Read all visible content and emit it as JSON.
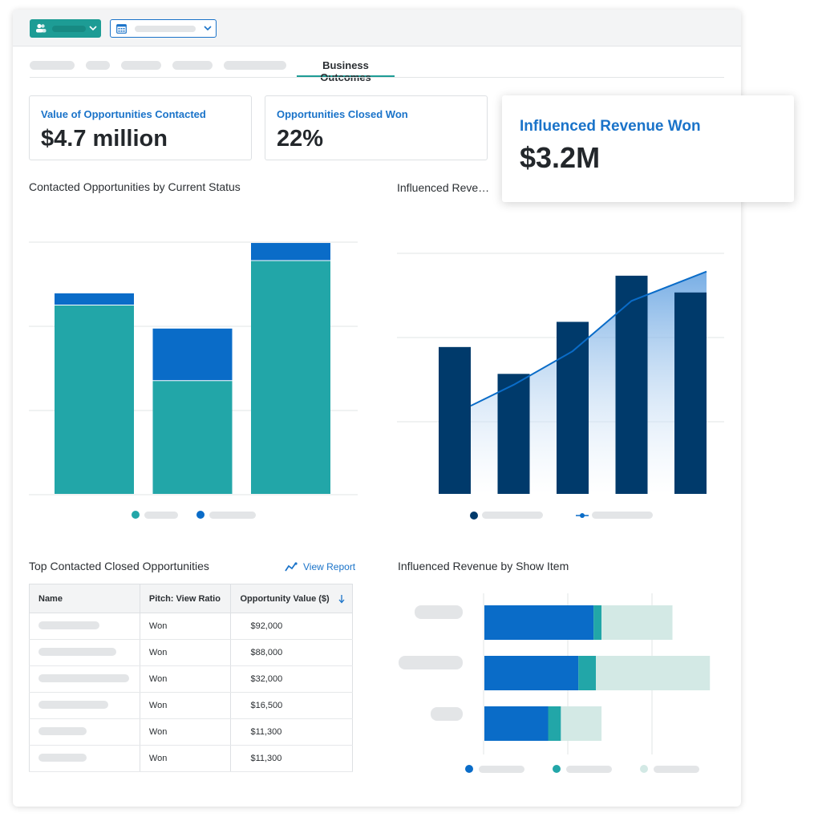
{
  "tabs": {
    "active_label": "Business Outcomes"
  },
  "kpis": [
    {
      "label": "Value of Opportunities Contacted",
      "value": "$4.7 million"
    },
    {
      "label": "Opportunities Closed Won",
      "value": "22%"
    }
  ],
  "highlight_kpi": {
    "label": "Influenced Revenue Won",
    "value": "$3.2M"
  },
  "status_chart": {
    "title": "Contacted Opportunities by Current Status"
  },
  "revenue_chart": {
    "title": "Influenced Reve…"
  },
  "top_table": {
    "title": "Top Contacted Closed Opportunities",
    "view_report": "View Report",
    "columns": [
      "Name",
      "Pitch: View Ratio",
      "Opportunity Value ($)"
    ],
    "rows": [
      {
        "ratio": "Won",
        "value": "$92,000"
      },
      {
        "ratio": "Won",
        "value": "$88,000"
      },
      {
        "ratio": "Won",
        "value": "$32,000"
      },
      {
        "ratio": "Won",
        "value": "$16,500"
      },
      {
        "ratio": "Won",
        "value": "$11,300"
      },
      {
        "ratio": "Won",
        "value": "$11,300"
      }
    ]
  },
  "show_item_chart": {
    "title": "Influenced Revenue by Show Item"
  },
  "colors": {
    "teal": "#22a6a8",
    "blue": "#0a6cc8",
    "navy": "#003a6b",
    "pale": "#d3e9e5"
  },
  "chart_data": [
    {
      "type": "bar",
      "stacked": true,
      "categories": [
        "",
        "",
        ""
      ],
      "series": [
        {
          "values": [
            225,
            135,
            278
          ]
        },
        {
          "values": [
            14,
            62,
            21
          ]
        }
      ],
      "ylim": [
        0,
        300
      ],
      "grid": true,
      "legend": "bottom"
    },
    {
      "type": "bar",
      "categories": [
        "",
        "",
        "",
        "",
        ""
      ],
      "series": [
        {
          "values": [
            175,
            143,
            205,
            260,
            240
          ]
        },
        {
          "type": "area",
          "values": [
            105,
            130,
            170,
            230,
            265
          ]
        }
      ],
      "ylim": [
        0,
        300
      ],
      "grid": true,
      "legend": "bottom"
    },
    {
      "type": "bar",
      "orientation": "horizontal",
      "stacked": true,
      "categories": [
        "",
        "",
        ""
      ],
      "series": [
        {
          "values": [
            137,
            118,
            80
          ]
        },
        {
          "values": [
            10,
            22,
            16
          ]
        },
        {
          "values": [
            89,
            143,
            51
          ]
        }
      ],
      "xlim": [
        0,
        320
      ],
      "grid": true,
      "legend": "bottom"
    }
  ]
}
